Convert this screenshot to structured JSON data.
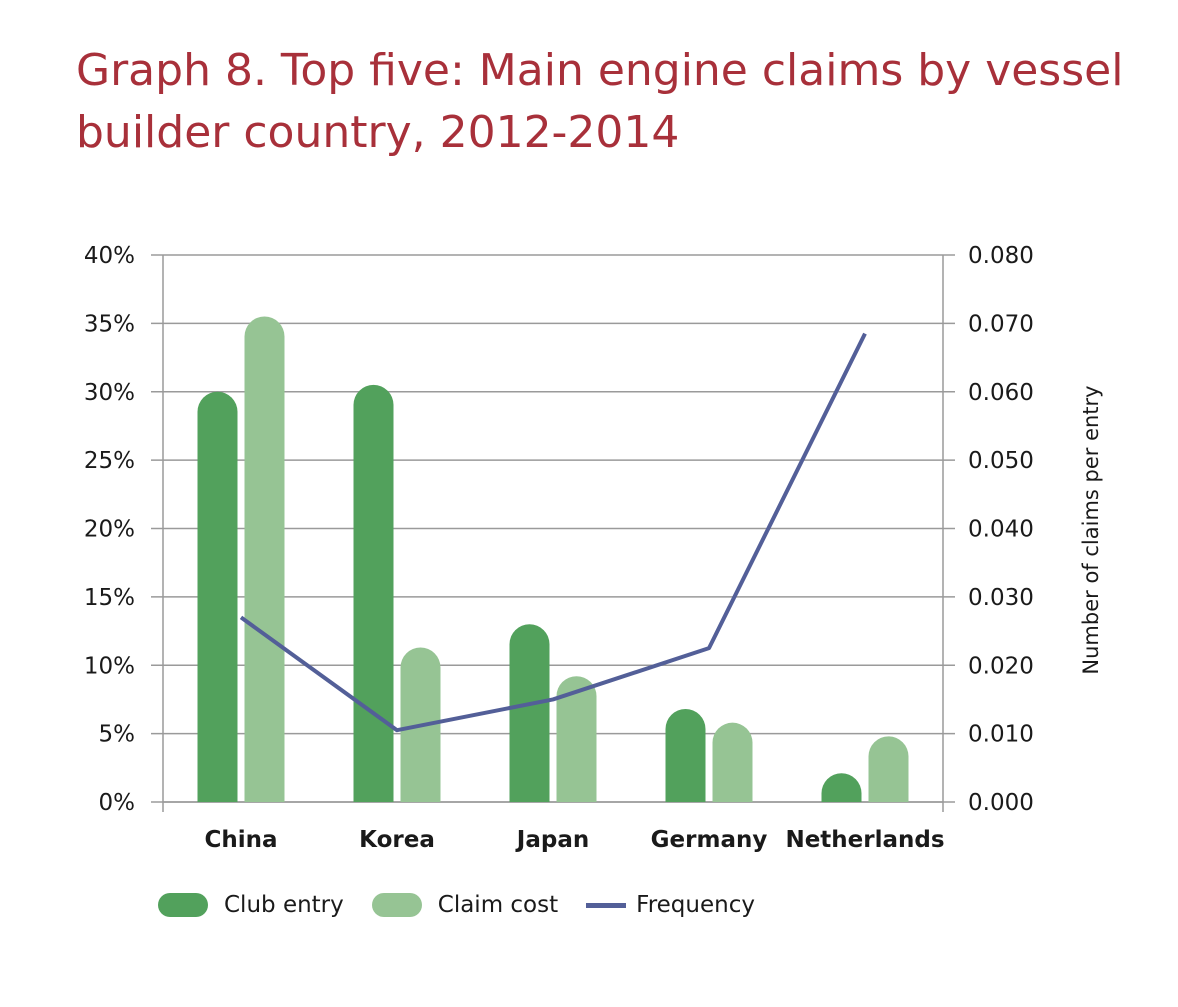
{
  "title": "Graph 8. Top five: Main engine claims by vessel builder country, 2012-2014",
  "colors": {
    "title": "#a8303a",
    "club_entry": "#52a15c",
    "claim_cost": "#96c494",
    "frequency": "#535f98",
    "grid": "#9a9a9a"
  },
  "chart_data": {
    "type": "bar",
    "categories": [
      "China",
      "Korea",
      "Japan",
      "Germany",
      "Netherlands"
    ],
    "series": [
      {
        "name": "Club entry",
        "type": "bar",
        "axis": "left",
        "values": [
          30,
          30.5,
          13,
          6.8,
          2.1
        ]
      },
      {
        "name": "Claim cost",
        "type": "bar",
        "axis": "left",
        "values": [
          35.5,
          11.3,
          9.2,
          5.8,
          4.8
        ]
      },
      {
        "name": "Frequency",
        "type": "line",
        "axis": "right",
        "values": [
          0.027,
          0.0105,
          0.015,
          0.0225,
          0.0685
        ]
      }
    ],
    "y_left": {
      "min": 0,
      "max": 40,
      "step": 5,
      "tick_labels": [
        "0%",
        "5%",
        "10%",
        "15%",
        "20%",
        "25%",
        "30%",
        "35%",
        "40%"
      ]
    },
    "y_right": {
      "min": 0,
      "max": 0.08,
      "tick_labels": [
        "0.000",
        "0.010",
        "0.020",
        "0.030",
        "0.040",
        "0.050",
        "0.060",
        "0.070",
        "0.080"
      ],
      "label": "Number of claims per entry"
    },
    "grid": true,
    "legend": {
      "position": "bottom-left",
      "entries": [
        "Club entry",
        "Claim cost",
        "Frequency"
      ]
    }
  }
}
